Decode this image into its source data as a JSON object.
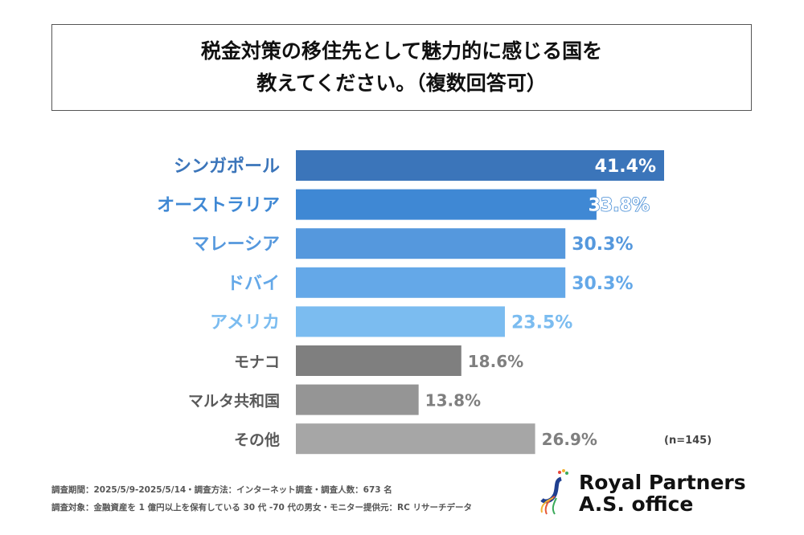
{
  "chart_data": {
    "type": "bar",
    "orientation": "horizontal",
    "title": [
      "税金対策の移住先として魅力的に感じる国を",
      "教えてください。（複数回答可）"
    ],
    "categories": [
      "シンガポール",
      "オーストラリア",
      "マレーシア",
      "ドバイ",
      "アメリカ",
      "モナコ",
      "マルタ共和国",
      "その他"
    ],
    "values": [
      41.4,
      33.8,
      30.3,
      30.3,
      23.5,
      18.6,
      13.8,
      26.9
    ],
    "value_labels": [
      "41.4%",
      "33.8%",
      "30.3%",
      "30.3%",
      "23.5%",
      "18.6%",
      "13.8%",
      "26.9%"
    ],
    "colors": [
      "#3b75ba",
      "#3f88d4",
      "#5598dd",
      "#64a8e8",
      "#7bbcf0",
      "#7f7f7f",
      "#959595",
      "#a6a6a6"
    ],
    "label_colors": [
      "#3b75ba",
      "#3f88d4",
      "#5598dd",
      "#64a8e8",
      "#7bbcf0",
      "#595959",
      "#595959",
      "#595959"
    ],
    "xlim": [
      0,
      41.4
    ],
    "grid": false,
    "sample_size": "(n=145)"
  },
  "notes": [
    "調査期間：2025/5/9-2025/5/14・調査方法：インターネット調査・調査人数：673 名",
    "調査対象：金融資産を 1 億円以上を保有している 30 代 -70 代の男女・モニター提供元：RC リサーチデータ"
  ],
  "logo": {
    "line1": "Royal Partners",
    "line2": "A.S. office"
  }
}
